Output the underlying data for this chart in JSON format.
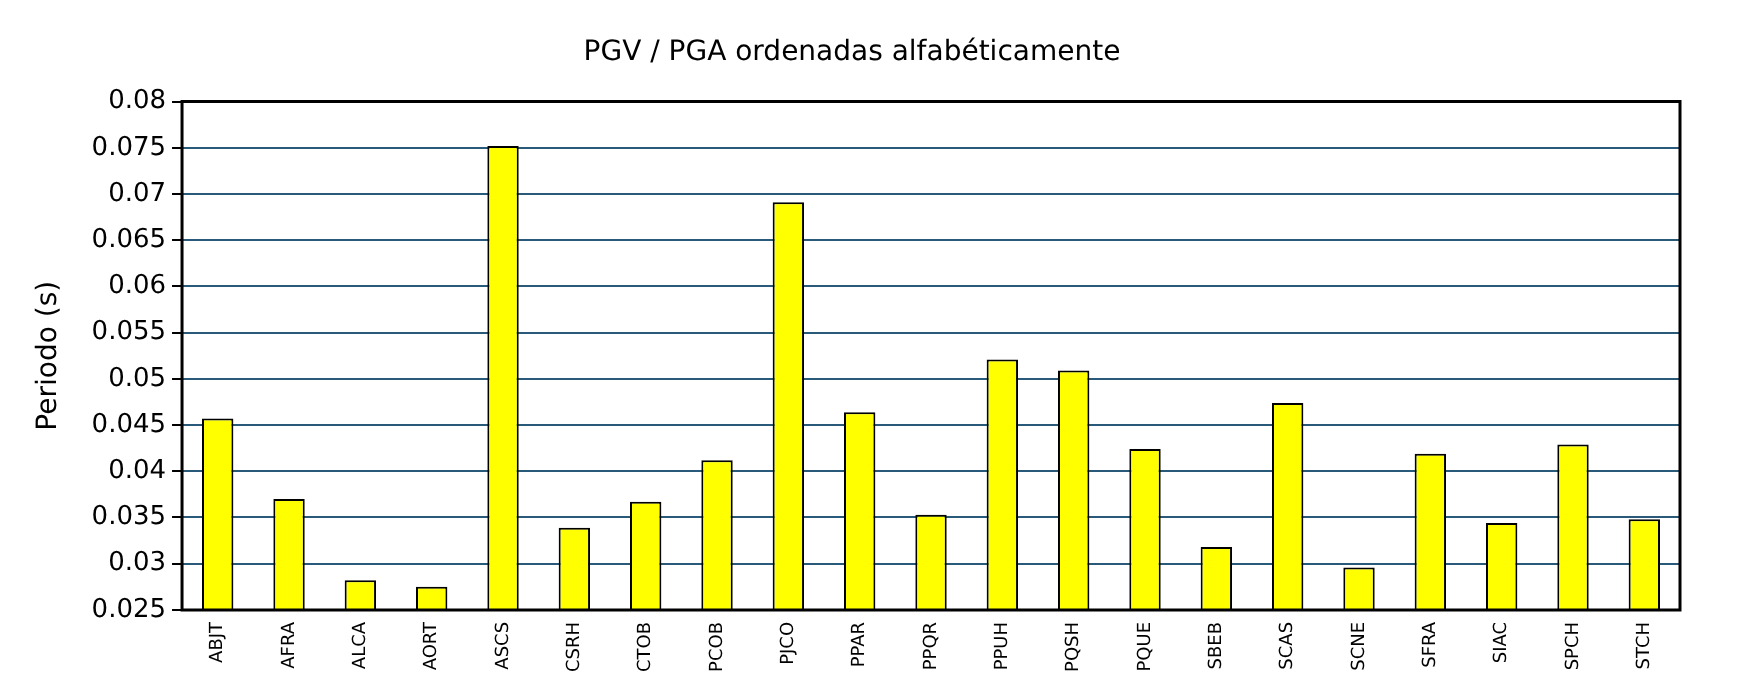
{
  "chart_data": {
    "type": "bar",
    "title": "PGV / PGA ordenadas alfabéticamente",
    "ylabel": "Periodo (s)",
    "categories": [
      "ABJT",
      "AFRA",
      "ALCA",
      "AORT",
      "ASCS",
      "CSRH",
      "CTOB",
      "PCOB",
      "PJCO",
      "PPAR",
      "PPQR",
      "PPUH",
      "PQSH",
      "PQUE",
      "SBEB",
      "SCAS",
      "SCNE",
      "SFRA",
      "SIAC",
      "SPCH",
      "STCH"
    ],
    "values": [
      0.0457,
      0.037,
      0.0282,
      0.0275,
      0.0752,
      0.0339,
      0.0367,
      0.0412,
      0.0691,
      0.0464,
      0.0353,
      0.0521,
      0.0509,
      0.0424,
      0.0318,
      0.0474,
      0.0296,
      0.0419,
      0.0344,
      0.0429,
      0.0348
    ],
    "color": "#ffff00",
    "ylim": [
      0.025,
      0.08
    ],
    "yticks": [
      0.025,
      0.03,
      0.035,
      0.04,
      0.045,
      0.05,
      0.055,
      0.06,
      0.065,
      0.07,
      0.075,
      0.08
    ],
    "grid": "y"
  }
}
